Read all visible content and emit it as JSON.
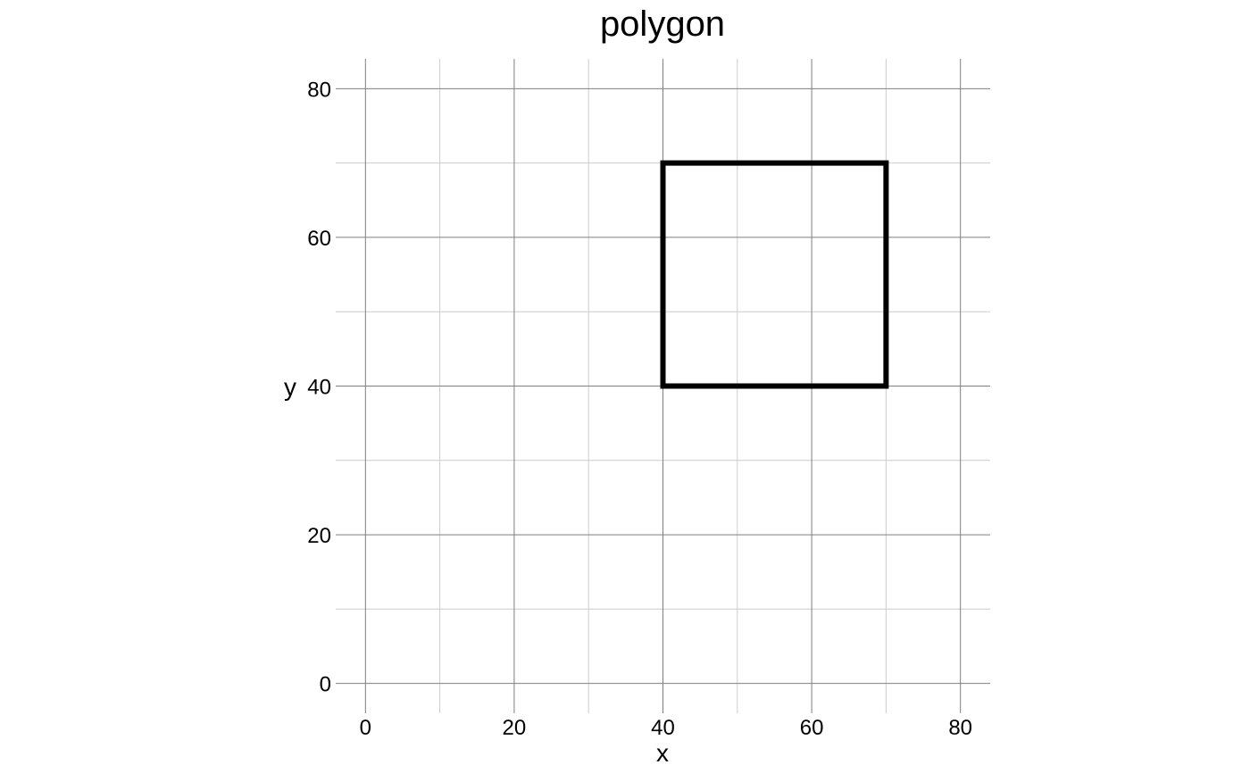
{
  "chart_data": {
    "type": "line",
    "title": "polygon",
    "xlabel": "x",
    "ylabel": "y",
    "xlim": [
      -4,
      84
    ],
    "ylim": [
      -4,
      84
    ],
    "x_ticks": [
      0,
      20,
      40,
      60,
      80
    ],
    "y_ticks": [
      0,
      20,
      40,
      60,
      80
    ],
    "x_minor_ticks": [
      10,
      30,
      50,
      70
    ],
    "y_minor_ticks": [
      10,
      30,
      50,
      70
    ],
    "grid": true,
    "series": [
      {
        "x": [
          40,
          70,
          70,
          40,
          40
        ],
        "y": [
          40,
          40,
          70,
          70,
          40
        ],
        "closed": true,
        "color": "#000000"
      }
    ]
  },
  "colors": {
    "major_grid": "#7f7f7f",
    "minor_grid": "#cccccc",
    "polygon": "#000000"
  }
}
